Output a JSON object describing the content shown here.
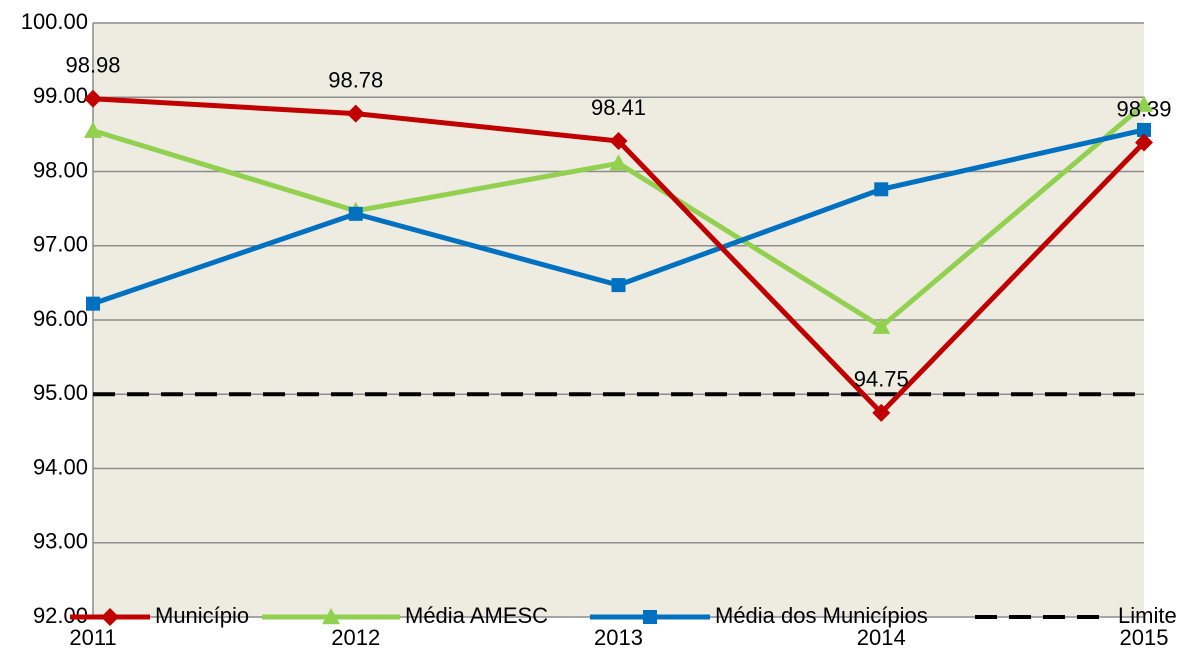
{
  "chart_data": {
    "type": "line",
    "categories": [
      "2011",
      "2012",
      "2013",
      "2014",
      "2015"
    ],
    "series": [
      {
        "name": "Município",
        "color": "#c00000",
        "marker": "diamond",
        "data_labels": true,
        "values": [
          98.98,
          98.78,
          98.41,
          94.75,
          98.39
        ]
      },
      {
        "name": "Média AMESC",
        "color": "#92d050",
        "marker": "triangle",
        "values": [
          98.55,
          97.47,
          98.11,
          95.91,
          98.9
        ]
      },
      {
        "name": "Média dos Municípios",
        "color": "#0070c0",
        "marker": "square",
        "values": [
          96.22,
          97.43,
          96.47,
          97.76,
          98.56
        ]
      },
      {
        "name": "Limite",
        "color": "#000000",
        "dashed": true,
        "values": [
          95,
          95,
          95,
          95,
          95
        ]
      }
    ],
    "ylim": [
      92,
      100
    ],
    "yticks": [
      {
        "value": 92,
        "label": "92.00"
      },
      {
        "value": 93,
        "label": "93.00"
      },
      {
        "value": 94,
        "label": "94.00"
      },
      {
        "value": 95,
        "label": "95.00"
      },
      {
        "value": 96,
        "label": "96.00"
      },
      {
        "value": 97,
        "label": "97.00"
      },
      {
        "value": 98,
        "label": "98.00"
      },
      {
        "value": 99,
        "label": "99.00"
      },
      {
        "value": 100,
        "label": "100.00"
      }
    ],
    "grid": true,
    "legend": "bottom",
    "background": "#eeebe0"
  }
}
